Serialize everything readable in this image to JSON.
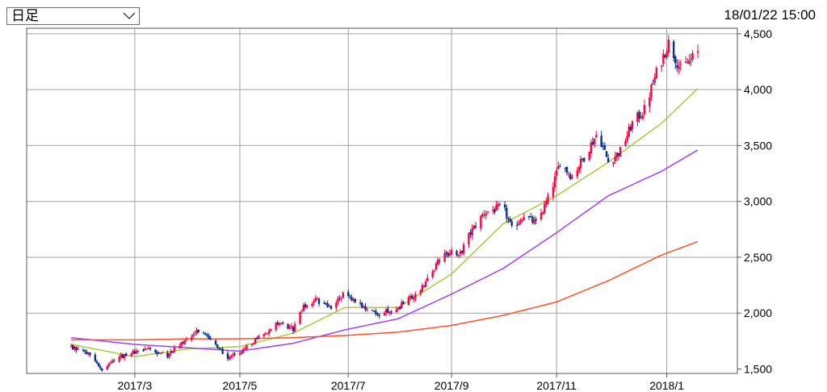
{
  "period_select": {
    "selected": "日足",
    "icon": "chevron-down-icon"
  },
  "timestamp": "18/01/22 15:00",
  "chart_data": {
    "type": "candlestick",
    "x_tick_labels": [
      "2017/3",
      "2017/5",
      "2017/7",
      "2017/9",
      "2017/11",
      "2018/1"
    ],
    "x_tick_dates": [
      "2017-03-01",
      "2017-05-01",
      "2017-07-03",
      "2017-09-01",
      "2017-11-01",
      "2018-01-04"
    ],
    "x_range": [
      "2017-01-23",
      "2018-01-22"
    ],
    "y_tick_labels": [
      "1,500",
      "2,000",
      "2,500",
      "3,000",
      "3,500",
      "4,000",
      "4,500"
    ],
    "y_ticks": [
      1500,
      2000,
      2500,
      3000,
      3500,
      4000,
      4500
    ],
    "ylim": [
      1460,
      4550
    ],
    "grid": true,
    "colors": {
      "up": "#ff0040",
      "down": "#0c2f8a",
      "ma_short": "#a8cc3c",
      "ma_mid": "#a040ff",
      "ma_long": "#ff5028",
      "grid": "#a0a0a0"
    },
    "close_path": [
      [
        "2017-01-23",
        1700
      ],
      [
        "2017-02-03",
        1640
      ],
      [
        "2017-02-10",
        1470
      ],
      [
        "2017-02-17",
        1590
      ],
      [
        "2017-03-01",
        1650
      ],
      [
        "2017-03-10",
        1680
      ],
      [
        "2017-03-20",
        1620
      ],
      [
        "2017-04-01",
        1780
      ],
      [
        "2017-04-07",
        1840
      ],
      [
        "2017-04-14",
        1770
      ],
      [
        "2017-04-24",
        1600
      ],
      [
        "2017-05-01",
        1640
      ],
      [
        "2017-05-12",
        1780
      ],
      [
        "2017-05-22",
        1900
      ],
      [
        "2017-06-01",
        1860
      ],
      [
        "2017-06-07",
        2050
      ],
      [
        "2017-06-14",
        2120
      ],
      [
        "2017-06-23",
        2050
      ],
      [
        "2017-07-01",
        2180
      ],
      [
        "2017-07-10",
        2080
      ],
      [
        "2017-07-20",
        1980
      ],
      [
        "2017-08-01",
        2050
      ],
      [
        "2017-08-10",
        2150
      ],
      [
        "2017-08-18",
        2300
      ],
      [
        "2017-08-25",
        2480
      ],
      [
        "2017-09-01",
        2560
      ],
      [
        "2017-09-05",
        2500
      ],
      [
        "2017-09-12",
        2720
      ],
      [
        "2017-09-20",
        2900
      ],
      [
        "2017-10-01",
        2950
      ],
      [
        "2017-10-06",
        2750
      ],
      [
        "2017-10-13",
        2880
      ],
      [
        "2017-10-20",
        2800
      ],
      [
        "2017-10-28",
        3050
      ],
      [
        "2017-11-03",
        3350
      ],
      [
        "2017-11-10",
        3220
      ],
      [
        "2017-11-17",
        3400
      ],
      [
        "2017-11-25",
        3620
      ],
      [
        "2017-12-01",
        3350
      ],
      [
        "2017-12-08",
        3450
      ],
      [
        "2017-12-15",
        3700
      ],
      [
        "2017-12-22",
        3820
      ],
      [
        "2017-12-29",
        4150
      ],
      [
        "2018-01-05",
        4420
      ],
      [
        "2018-01-12",
        4180
      ],
      [
        "2018-01-22",
        4330
      ]
    ],
    "moving_averages": [
      {
        "key": "ma_short",
        "points": [
          [
            "2017-01-23",
            1720
          ],
          [
            "2017-03-01",
            1610
          ],
          [
            "2017-04-01",
            1680
          ],
          [
            "2017-05-01",
            1700
          ],
          [
            "2017-06-01",
            1820
          ],
          [
            "2017-07-01",
            2050
          ],
          [
            "2017-08-01",
            2050
          ],
          [
            "2017-09-01",
            2350
          ],
          [
            "2017-10-01",
            2800
          ],
          [
            "2017-11-01",
            3050
          ],
          [
            "2017-12-01",
            3350
          ],
          [
            "2018-01-01",
            3700
          ],
          [
            "2018-01-22",
            4010
          ]
        ]
      },
      {
        "key": "ma_mid",
        "points": [
          [
            "2017-01-23",
            1780
          ],
          [
            "2017-03-01",
            1720
          ],
          [
            "2017-04-01",
            1690
          ],
          [
            "2017-05-01",
            1660
          ],
          [
            "2017-06-01",
            1730
          ],
          [
            "2017-07-01",
            1850
          ],
          [
            "2017-08-01",
            1950
          ],
          [
            "2017-09-01",
            2170
          ],
          [
            "2017-10-01",
            2400
          ],
          [
            "2017-11-01",
            2720
          ],
          [
            "2017-12-01",
            3050
          ],
          [
            "2018-01-01",
            3270
          ],
          [
            "2018-01-22",
            3460
          ]
        ]
      },
      {
        "key": "ma_long",
        "points": [
          [
            "2017-01-23",
            1760
          ],
          [
            "2017-03-01",
            1760
          ],
          [
            "2017-04-01",
            1770
          ],
          [
            "2017-05-01",
            1770
          ],
          [
            "2017-06-01",
            1780
          ],
          [
            "2017-07-01",
            1800
          ],
          [
            "2017-08-01",
            1830
          ],
          [
            "2017-09-01",
            1890
          ],
          [
            "2017-10-01",
            1980
          ],
          [
            "2017-11-01",
            2100
          ],
          [
            "2017-12-01",
            2290
          ],
          [
            "2018-01-01",
            2520
          ],
          [
            "2018-01-22",
            2640
          ]
        ]
      }
    ]
  }
}
